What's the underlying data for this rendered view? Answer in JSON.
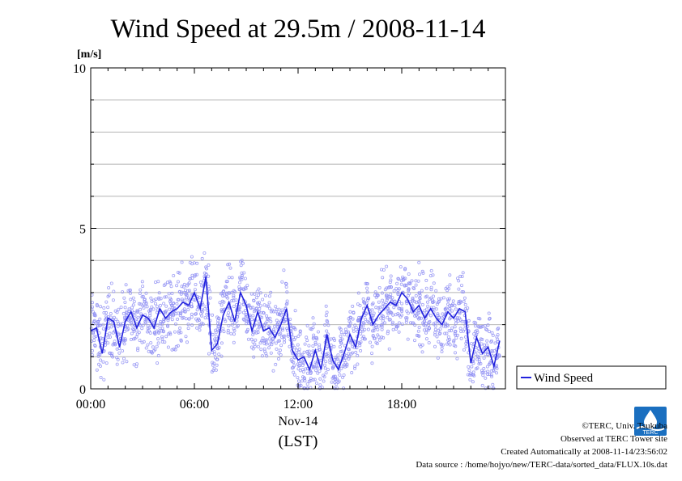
{
  "chart_data": {
    "type": "line",
    "title": "Wind Speed at 29.5m / 2008-11-14",
    "ylabel": "[m/s]",
    "xlabel_date": "Nov-14",
    "xlabel_zone": "(LST)",
    "ylim": [
      0,
      10
    ],
    "xlim": [
      "00:00",
      "24:00"
    ],
    "yticks": [
      "0",
      "5",
      "10"
    ],
    "xticks": [
      "00:00",
      "06:00",
      "12:00",
      "18:00"
    ],
    "grid": true,
    "legend": {
      "position": "right",
      "entries": [
        "Wind Speed"
      ]
    },
    "series": [
      {
        "name": "Wind Speed",
        "color": "#2222dd",
        "x": [
          "00:00",
          "00:20",
          "00:40",
          "01:00",
          "01:20",
          "01:40",
          "02:00",
          "02:20",
          "02:40",
          "03:00",
          "03:20",
          "03:40",
          "04:00",
          "04:20",
          "04:40",
          "05:00",
          "05:20",
          "05:40",
          "06:00",
          "06:20",
          "06:40",
          "07:00",
          "07:20",
          "07:40",
          "08:00",
          "08:20",
          "08:40",
          "09:00",
          "09:20",
          "09:40",
          "10:00",
          "10:20",
          "10:40",
          "11:00",
          "11:20",
          "11:40",
          "12:00",
          "12:20",
          "12:40",
          "13:00",
          "13:20",
          "13:40",
          "14:00",
          "14:20",
          "14:40",
          "15:00",
          "15:20",
          "15:40",
          "16:00",
          "16:20",
          "16:40",
          "17:00",
          "17:20",
          "17:40",
          "18:00",
          "18:20",
          "18:40",
          "19:00",
          "19:20",
          "19:40",
          "20:00",
          "20:20",
          "20:40",
          "21:00",
          "21:20",
          "21:40",
          "22:00",
          "22:20",
          "22:40",
          "23:00",
          "23:20",
          "23:40"
        ],
        "values": [
          1.8,
          1.9,
          1.1,
          2.2,
          2.1,
          1.3,
          2.1,
          2.4,
          1.9,
          2.3,
          2.2,
          1.9,
          2.5,
          2.2,
          2.4,
          2.5,
          2.7,
          2.6,
          3.0,
          2.5,
          3.5,
          1.2,
          1.4,
          2.3,
          2.7,
          2.1,
          3.0,
          2.6,
          1.8,
          2.4,
          1.8,
          1.9,
          1.6,
          2.0,
          2.5,
          1.2,
          0.9,
          1.0,
          0.6,
          1.2,
          0.6,
          1.7,
          0.9,
          0.6,
          1.1,
          1.7,
          1.3,
          2.2,
          2.6,
          2.0,
          2.3,
          2.5,
          2.7,
          2.6,
          3.0,
          2.8,
          2.4,
          2.6,
          2.2,
          2.5,
          2.2,
          2.0,
          2.4,
          2.2,
          2.5,
          2.4,
          0.8,
          1.6,
          1.1,
          1.3,
          0.7,
          1.5
        ]
      }
    ]
  },
  "footer": {
    "copyright": "©TERC, Univ. Tsukuba",
    "observed": "Observed at TERC Tower site",
    "created": "Created Automatically at 2008-11-14/23:56:02",
    "source": "Data source : /home/hojyo/new/TERC-data/sorted_data/FLUX.10s.dat"
  },
  "logo": {
    "name": "terc-logo",
    "text": "TERC",
    "color": "#1a6fc0"
  }
}
